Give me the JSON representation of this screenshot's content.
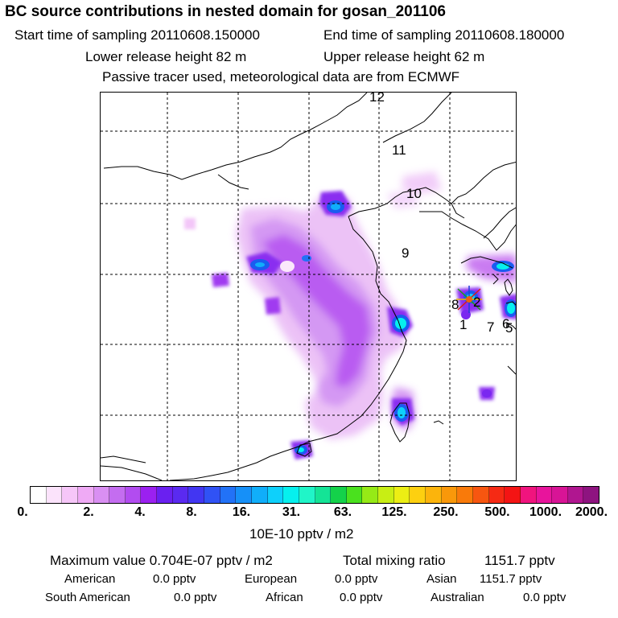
{
  "header": {
    "title": "BC  source contributions in nested domain for gosan_201106",
    "start_label": "Start time of sampling 20110608.150000",
    "end_label": "End time of sampling 20110608.180000",
    "lower_label": "Lower release height   82 m",
    "upper_label": "Upper release height   62 m",
    "tracer_note": "Passive tracer used, meteorological data are from ECMWF"
  },
  "map": {
    "receptor": "gosan",
    "trajectory_points": [
      "1",
      "2",
      "5",
      "6",
      "7",
      "8",
      "9",
      "10",
      "11",
      "12"
    ]
  },
  "colorbar": {
    "unit": "10E-10 pptv / m2",
    "ticks": [
      "0.",
      "2.",
      "4.",
      "8.",
      "16.",
      "31.",
      "63.",
      "125.",
      "250.",
      "500.",
      "1000.",
      "2000."
    ],
    "colors": [
      "#ffffff",
      "#fbe3fb",
      "#f6c6f8",
      "#efaaf5",
      "#d98ff2",
      "#c46df0",
      "#b24cf0",
      "#9b20f0",
      "#6a20f0",
      "#5a2af0",
      "#4236f2",
      "#3052f5",
      "#2272f7",
      "#1690f8",
      "#10aefa",
      "#0ed0fb",
      "#06f0ee",
      "#20f5c8",
      "#14e496",
      "#14d24a",
      "#4ae11e",
      "#96ea16",
      "#c8ee14",
      "#ecee14",
      "#fdd010",
      "#fcb40c",
      "#f9980a",
      "#f97a0a",
      "#f75610",
      "#f62a14",
      "#f41414",
      "#f0147e",
      "#e8149c",
      "#d81496",
      "#b01690",
      "#8e1480"
    ]
  },
  "footer": {
    "max_label": "Maximum value  0.704E-07 pptv / m2",
    "total_label": "Total mixing ratio",
    "total_value": "1151.7 pptv",
    "regions": [
      {
        "name": "American",
        "value": "0.0 pptv"
      },
      {
        "name": "European",
        "value": "0.0 pptv"
      },
      {
        "name": "Asian",
        "value": "1151.7 pptv"
      },
      {
        "name": "South American",
        "value": "0.0 pptv"
      },
      {
        "name": "African",
        "value": "0.0 pptv"
      },
      {
        "name": "Australian",
        "value": "0.0 pptv"
      }
    ]
  }
}
